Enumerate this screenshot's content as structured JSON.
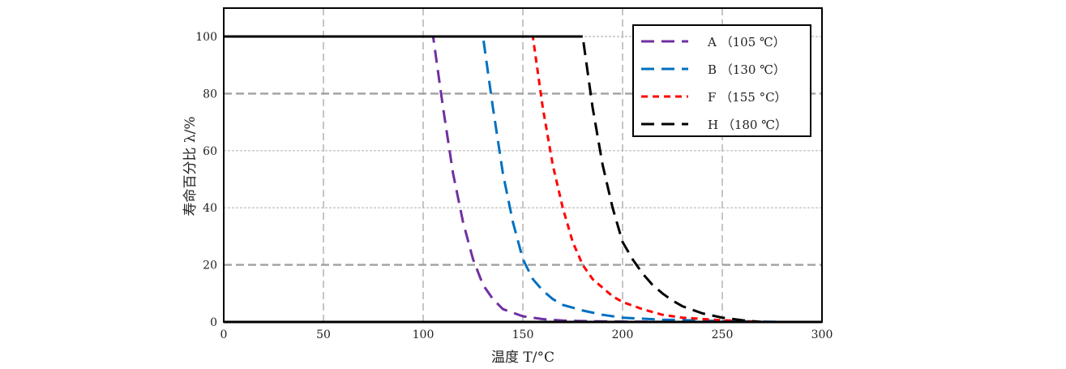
{
  "chart_data": {
    "type": "line",
    "title": "",
    "xlabel": "温度  T/°C",
    "ylabel": "寿命百分比 λ/%",
    "xlim": [
      0,
      300
    ],
    "ylim": [
      0,
      110
    ],
    "xticks": [
      0,
      50,
      100,
      150,
      200,
      250,
      300
    ],
    "yticks": [
      0,
      20,
      40,
      60,
      80,
      100
    ],
    "grid": true,
    "legend_position": "top-right",
    "series": [
      {
        "name": "A （105 ℃）",
        "color": "#7030a0",
        "dash": "long-dash",
        "x": [
          0,
          105,
          107,
          110,
          115,
          120,
          125,
          130,
          135,
          140,
          150,
          160,
          170,
          180,
          200,
          230
        ],
        "y": [
          100,
          100,
          90,
          75,
          52,
          35,
          22,
          13,
          8,
          4.5,
          2,
          1,
          0.5,
          0.3,
          0.1,
          0
        ]
      },
      {
        "name": "B （130 ℃）",
        "color": "#0070c0",
        "dash": "long-dash",
        "x": [
          0,
          130,
          132,
          135,
          140,
          145,
          150,
          155,
          160,
          165,
          170,
          180,
          190,
          200,
          220,
          250,
          280
        ],
        "y": [
          100,
          100,
          90,
          75,
          52,
          35,
          22,
          15,
          11,
          8,
          6,
          4,
          2.5,
          1.5,
          0.8,
          0.3,
          0
        ]
      },
      {
        "name": "F （155 °C）",
        "color": "#ff0000",
        "dash": "short-dash",
        "x": [
          0,
          155,
          157,
          160,
          165,
          170,
          175,
          180,
          185,
          190,
          195,
          200,
          210,
          220,
          230,
          250,
          270
        ],
        "y": [
          100,
          100,
          90,
          75,
          55,
          40,
          28,
          20,
          15,
          12,
          9,
          7,
          4.5,
          2.5,
          1.5,
          0.6,
          0
        ]
      },
      {
        "name": "H （180 ℃）",
        "color": "#000000",
        "dash": "long-dash",
        "x": [
          0,
          180,
          182,
          185,
          190,
          195,
          200,
          205,
          210,
          215,
          220,
          225,
          230,
          240,
          250,
          260,
          270
        ],
        "y": [
          100,
          100,
          90,
          75,
          55,
          40,
          28,
          22,
          17,
          13,
          10,
          7.5,
          5.5,
          3,
          1.5,
          0.6,
          0
        ]
      }
    ]
  }
}
